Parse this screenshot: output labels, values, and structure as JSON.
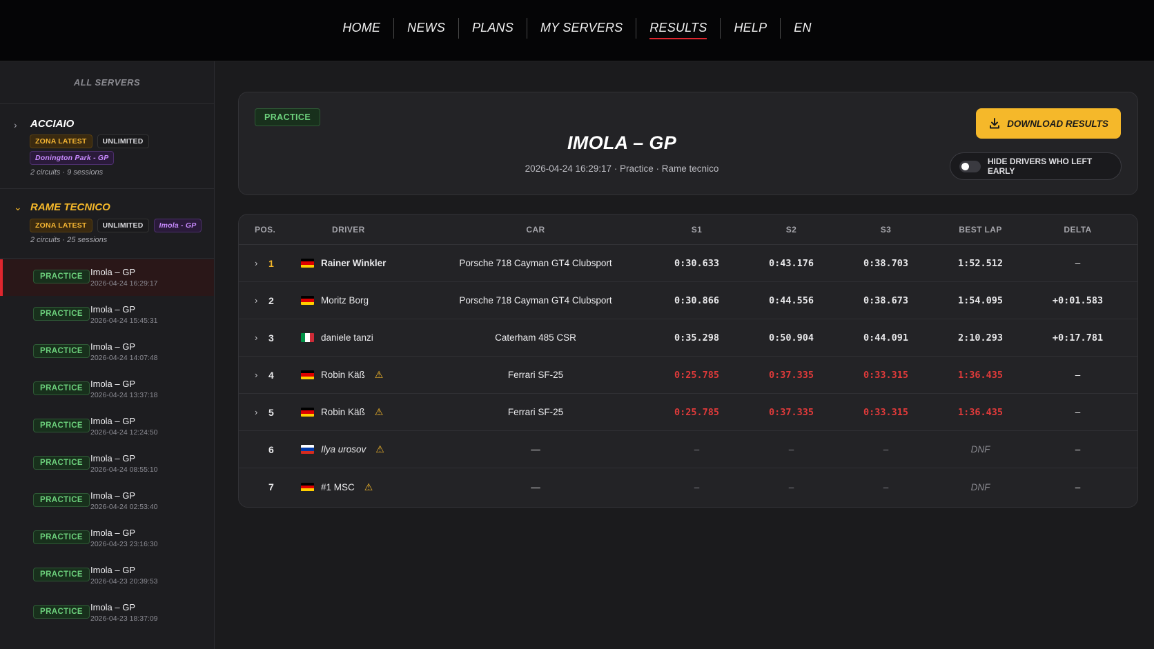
{
  "nav": {
    "items": [
      {
        "label": "HOME"
      },
      {
        "label": "NEWS"
      },
      {
        "label": "PLANS"
      },
      {
        "label": "MY SERVERS"
      },
      {
        "label": "RESULTS",
        "active": true
      },
      {
        "label": "HELP"
      },
      {
        "label": "EN"
      }
    ]
  },
  "sidebar": {
    "header": "ALL SERVERS",
    "groups": [
      {
        "name": "ACCIAIO",
        "expanded": false,
        "name_color": "#ffffff",
        "tags": [
          "ZONA LATEST",
          "UNLIMITED"
        ],
        "circuit": "Donington Park - GP",
        "meta": "2 circuits · 9 sessions"
      },
      {
        "name": "RAME TECNICO",
        "expanded": true,
        "name_color": "#f5b82a",
        "tags": [
          "ZONA LATEST",
          "UNLIMITED"
        ],
        "circuit": "Imola - GP",
        "meta": "2 circuits · 25 sessions"
      }
    ],
    "chevron_collapsed": "›",
    "chevron_expanded": "⌄",
    "sessions": [
      {
        "type": "PRACTICE",
        "title": "Imola – GP",
        "date": "2026-04-24 16:29:17",
        "active": true
      },
      {
        "type": "PRACTICE",
        "title": "Imola – GP",
        "date": "2026-04-24 15:45:31"
      },
      {
        "type": "PRACTICE",
        "title": "Imola – GP",
        "date": "2026-04-24 14:07:48"
      },
      {
        "type": "PRACTICE",
        "title": "Imola – GP",
        "date": "2026-04-24 13:37:18"
      },
      {
        "type": "PRACTICE",
        "title": "Imola – GP",
        "date": "2026-04-24 12:24:50"
      },
      {
        "type": "PRACTICE",
        "title": "Imola – GP",
        "date": "2026-04-24 08:55:10"
      },
      {
        "type": "PRACTICE",
        "title": "Imola – GP",
        "date": "2026-04-24 02:53:40"
      },
      {
        "type": "PRACTICE",
        "title": "Imola – GP",
        "date": "2026-04-23 23:16:30"
      },
      {
        "type": "PRACTICE",
        "title": "Imola – GP",
        "date": "2026-04-23 20:39:53"
      },
      {
        "type": "PRACTICE",
        "title": "Imola – GP",
        "date": "2026-04-23 18:37:09"
      }
    ]
  },
  "session_info": {
    "type": "PRACTICE",
    "title": "IMOLA – GP",
    "subtitle": "2026-04-24 16:29:17 · Practice · Rame tecnico",
    "download_label": "DOWNLOAD RESULTS",
    "download_icon": "download-icon",
    "toggle_label": "HIDE DRIVERS WHO LEFT EARLY",
    "toggle_on": false
  },
  "results": {
    "columns": {
      "pos": "POS.",
      "driver": "DRIVER",
      "car": "CAR",
      "s1": "S1",
      "s2": "S2",
      "s3": "S3",
      "best": "BEST LAP",
      "delta": "DELTA"
    },
    "rows": [
      {
        "expand": "›",
        "pos": "1",
        "flag": "de",
        "driver": "Rainer Winkler",
        "bold": true,
        "warn": false,
        "car": "Porsche 718 Cayman GT4 Clubsport",
        "s1": "0:30.633",
        "s2": "0:43.176",
        "s3": "0:38.703",
        "best": "1:52.512",
        "delta": "–",
        "highlight": "gold"
      },
      {
        "expand": "›",
        "pos": "2",
        "flag": "de",
        "driver": "Moritz Borg",
        "warn": false,
        "car": "Porsche 718 Cayman GT4 Clubsport",
        "s1": "0:30.866",
        "s2": "0:44.556",
        "s3": "0:38.673",
        "best": "1:54.095",
        "delta": "+0:01.583"
      },
      {
        "expand": "›",
        "pos": "3",
        "flag": "it",
        "driver": "daniele tanzi",
        "warn": false,
        "car": "Caterham 485 CSR",
        "s1": "0:35.298",
        "s2": "0:50.904",
        "s3": "0:44.091",
        "best": "2:10.293",
        "delta": "+0:17.781"
      },
      {
        "expand": "›",
        "pos": "4",
        "flag": "de",
        "driver": "Robin Käß",
        "warn": true,
        "car": "Ferrari SF-25",
        "s1": "0:25.785",
        "s2": "0:37.335",
        "s3": "0:33.315",
        "best": "1:36.435",
        "delta": "–",
        "invalid": true
      },
      {
        "expand": "›",
        "pos": "5",
        "flag": "de",
        "driver": "Robin Käß",
        "warn": true,
        "car": "Ferrari SF-25",
        "s1": "0:25.785",
        "s2": "0:37.335",
        "s3": "0:33.315",
        "best": "1:36.435",
        "delta": "–",
        "invalid": true
      },
      {
        "expand": "",
        "pos": "6",
        "flag": "ru",
        "driver": "Ilya urosov",
        "italic": true,
        "warn": true,
        "car": "—",
        "s1": "–",
        "s2": "–",
        "s3": "–",
        "best": "DNF",
        "delta": "–",
        "dnf": true
      },
      {
        "expand": "",
        "pos": "7",
        "flag": "de",
        "driver": "#1 MSC",
        "warn": true,
        "car": "—",
        "s1": "–",
        "s2": "–",
        "s3": "–",
        "best": "DNF",
        "delta": "–",
        "dnf": true
      }
    ]
  },
  "colors": {
    "accent_red": "#e0262e",
    "gold": "#f5b82a",
    "practice_green": "#6dd27d",
    "invalid_red": "#e03a3a"
  }
}
